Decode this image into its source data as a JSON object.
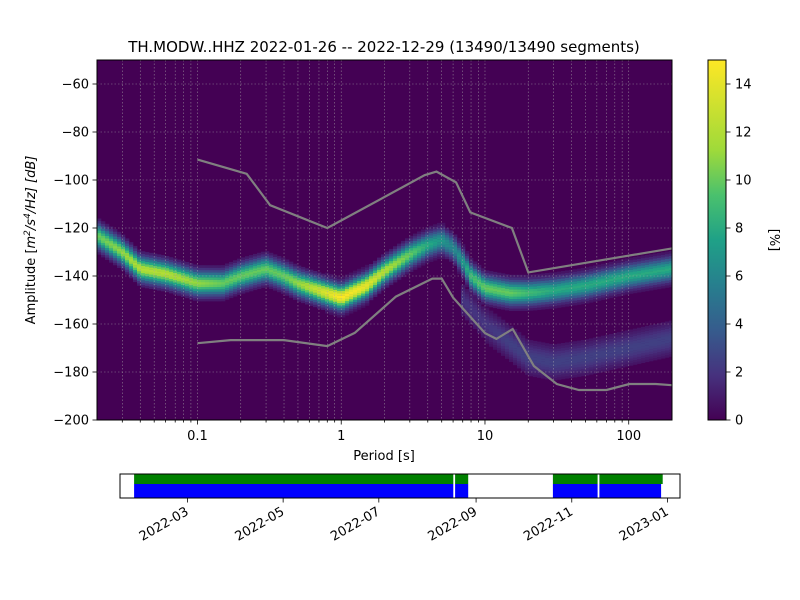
{
  "chart_data": [
    {
      "type": "heatmap",
      "title": "TH.MODW..HHZ   2022-01-26 -- 2022-12-29  (13490/13490 segments)",
      "xlabel": "Period [s]",
      "ylabel_prefix": "Amplitude [",
      "ylabel_base1": "m",
      "ylabel_sup1": "2",
      "ylabel_mid": "/s",
      "ylabel_sup2": "4",
      "ylabel_suffix": "/Hz] [dB]",
      "x_scale": "log",
      "xlim": [
        0.02,
        200
      ],
      "ylim": [
        -200,
        -50
      ],
      "grid": true,
      "x_ticks": [
        {
          "value": 0.1,
          "label": "0.1"
        },
        {
          "value": 1,
          "label": "1"
        },
        {
          "value": 10,
          "label": "10"
        },
        {
          "value": 100,
          "label": "100"
        }
      ],
      "y_ticks": [
        {
          "value": -60,
          "label": "−60"
        },
        {
          "value": -80,
          "label": "−80"
        },
        {
          "value": -100,
          "label": "−100"
        },
        {
          "value": -120,
          "label": "−120"
        },
        {
          "value": -140,
          "label": "−140"
        },
        {
          "value": -160,
          "label": "−160"
        },
        {
          "value": -180,
          "label": "−180"
        },
        {
          "value": -200,
          "label": "−200"
        }
      ],
      "colormap": "viridis",
      "colorbar": {
        "label": "[%]",
        "range": [
          0,
          15
        ],
        "ticks": [
          {
            "value": 0,
            "label": "0"
          },
          {
            "value": 2,
            "label": "2"
          },
          {
            "value": 4,
            "label": "4"
          },
          {
            "value": 6,
            "label": "6"
          },
          {
            "value": 8,
            "label": "8"
          },
          {
            "value": 10,
            "label": "10"
          },
          {
            "value": 12,
            "label": "12"
          },
          {
            "value": 14,
            "label": "14"
          }
        ]
      },
      "density_bands": [
        {
          "x": [
            0.02,
            0.03,
            0.04,
            0.06,
            0.1,
            0.15,
            0.2,
            0.3,
            0.4,
            0.5,
            0.7,
            1.0,
            1.5,
            2.0,
            3.0,
            4.0,
            5.0,
            6.0,
            7.0,
            8.0,
            10,
            15,
            20,
            30,
            50,
            100,
            200
          ],
          "y": [
            -123,
            -130,
            -137,
            -139,
            -143,
            -143,
            -140,
            -137,
            -140,
            -143,
            -146,
            -149,
            -144,
            -138,
            -131,
            -127,
            -125,
            -128,
            -134,
            -140,
            -145,
            -147,
            -147,
            -146,
            -144,
            -140,
            -137
          ],
          "peak_percent": [
            10,
            11,
            12,
            12,
            11,
            10,
            10,
            10,
            10,
            11,
            13,
            15,
            14,
            12,
            10,
            8,
            7,
            6,
            7,
            9,
            10,
            10,
            9,
            8,
            8,
            8,
            8
          ]
        },
        {
          "x": [
            7,
            10,
            15,
            20,
            30,
            50,
            100,
            200
          ],
          "y": [
            -150,
            -160,
            -168,
            -174,
            -176,
            -174,
            -170,
            -166
          ],
          "peak_percent": [
            2,
            2,
            2.5,
            2.5,
            2.5,
            2.5,
            2.5,
            2.5
          ]
        }
      ],
      "noise_models": [
        {
          "x": [
            0.1,
            0.22,
            0.32,
            0.8,
            3.8,
            4.6,
            6.3,
            7.9,
            15.4,
            20,
            200
          ],
          "y": [
            -91.5,
            -97.4,
            -110.5,
            -120,
            -98,
            -96.5,
            -101,
            -113.5,
            -120,
            -138.5,
            -128.5
          ]
        },
        {
          "x": [
            0.1,
            0.17,
            0.4,
            0.8,
            1.24,
            2.4,
            4.3,
            5.0,
            6.0,
            10,
            12,
            15.6,
            21.9,
            31.6,
            45,
            70,
            101,
            154,
            200
          ],
          "y": [
            -168,
            -166.7,
            -166.7,
            -169.2,
            -163.7,
            -148.6,
            -141.1,
            -141.1,
            -149,
            -163.8,
            -166.2,
            -162.1,
            -177.5,
            -185,
            -187.5,
            -187.5,
            -185,
            -185,
            -185.5
          ]
        }
      ]
    },
    {
      "type": "timeline",
      "x_ticks": [
        "2022-03",
        "2022-05",
        "2022-07",
        "2022-09",
        "2022-11",
        "2023-01"
      ],
      "xlim": [
        "2022-01-17",
        "2023-01-09"
      ],
      "data_available": {
        "color": "#0000ff",
        "ranges": [
          [
            "2022-01-26",
            "2022-08-27"
          ],
          [
            "2022-10-20",
            "2022-12-28"
          ]
        ]
      },
      "processed": {
        "color": "#008000",
        "ranges": [
          [
            "2022-01-26",
            "2022-08-27"
          ],
          [
            "2022-10-20",
            "2022-12-29"
          ]
        ]
      },
      "gaps": [
        "2022-08-18",
        "2022-11-18"
      ]
    }
  ]
}
